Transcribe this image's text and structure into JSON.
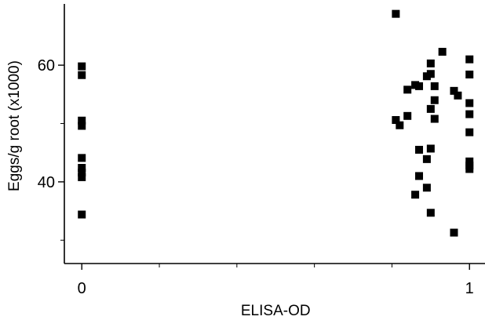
{
  "chart_data": {
    "type": "scatter",
    "title": "",
    "xlabel": "ELISA-OD",
    "ylabel": "Eggs/g root (x1000)",
    "xlim": [
      -0.045,
      1.04
    ],
    "ylim": [
      26,
      70.5
    ],
    "x_ticks": [
      0,
      1
    ],
    "y_ticks": [
      40,
      60
    ],
    "x_minor_ticks": [
      0.2,
      0.4,
      0.6,
      0.8
    ],
    "y_minor_ticks": [
      30,
      50
    ],
    "grid": false,
    "legend": "none",
    "marker_color": "#000000",
    "series": [
      {
        "points": [
          {
            "x": 0,
            "y": 59.8
          },
          {
            "x": 0,
            "y": 58.3
          },
          {
            "x": 0,
            "y": 50.5
          },
          {
            "x": 0,
            "y": 49.6
          },
          {
            "x": 0,
            "y": 44.1
          },
          {
            "x": 0,
            "y": 42.4
          },
          {
            "x": 0,
            "y": 41.6
          },
          {
            "x": 0,
            "y": 40.8
          },
          {
            "x": 0,
            "y": 34.4
          },
          {
            "x": 0.81,
            "y": 68.8
          },
          {
            "x": 0.81,
            "y": 50.6
          },
          {
            "x": 0.82,
            "y": 49.7
          },
          {
            "x": 0.84,
            "y": 55.8
          },
          {
            "x": 0.84,
            "y": 51.3
          },
          {
            "x": 0.86,
            "y": 56.6
          },
          {
            "x": 0.86,
            "y": 37.8
          },
          {
            "x": 0.87,
            "y": 56.4
          },
          {
            "x": 0.87,
            "y": 45.5
          },
          {
            "x": 0.87,
            "y": 41.0
          },
          {
            "x": 0.89,
            "y": 58.1
          },
          {
            "x": 0.89,
            "y": 43.9
          },
          {
            "x": 0.89,
            "y": 39.0
          },
          {
            "x": 0.9,
            "y": 60.3
          },
          {
            "x": 0.9,
            "y": 58.5
          },
          {
            "x": 0.9,
            "y": 52.5
          },
          {
            "x": 0.9,
            "y": 45.7
          },
          {
            "x": 0.9,
            "y": 34.7
          },
          {
            "x": 0.91,
            "y": 56.4
          },
          {
            "x": 0.91,
            "y": 54.0
          },
          {
            "x": 0.91,
            "y": 50.8
          },
          {
            "x": 0.93,
            "y": 62.3
          },
          {
            "x": 0.96,
            "y": 55.6
          },
          {
            "x": 0.96,
            "y": 31.3
          },
          {
            "x": 0.97,
            "y": 54.8
          },
          {
            "x": 1.0,
            "y": 61.0
          },
          {
            "x": 1.0,
            "y": 58.4
          },
          {
            "x": 1.0,
            "y": 53.5
          },
          {
            "x": 1.0,
            "y": 51.6
          },
          {
            "x": 1.0,
            "y": 48.5
          },
          {
            "x": 1.0,
            "y": 43.5
          },
          {
            "x": 1.0,
            "y": 42.8
          },
          {
            "x": 1.0,
            "y": 42.2
          }
        ]
      }
    ]
  }
}
